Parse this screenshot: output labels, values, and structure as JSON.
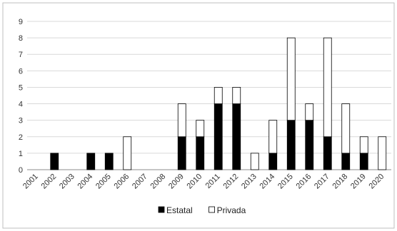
{
  "chart_data": {
    "type": "bar",
    "stacked": true,
    "categories": [
      "2001",
      "2002",
      "2003",
      "2004",
      "2005",
      "2006",
      "2007",
      "2008",
      "2009",
      "2010",
      "2011",
      "2012",
      "2013",
      "2014",
      "2015",
      "2016",
      "2017",
      "2018",
      "2019",
      "2020"
    ],
    "series": [
      {
        "name": "Estatal",
        "color": "#000000",
        "values": [
          0,
          1,
          0,
          1,
          1,
          0,
          0,
          0,
          2,
          2,
          4,
          4,
          0,
          1,
          3,
          3,
          2,
          1,
          1,
          0
        ]
      },
      {
        "name": "Privada",
        "color": "#ffffff",
        "values": [
          0,
          0,
          0,
          0,
          0,
          2,
          0,
          0,
          2,
          1,
          1,
          1,
          1,
          2,
          5,
          1,
          6,
          3,
          1,
          2
        ]
      }
    ],
    "ylim": [
      0,
      9
    ],
    "yticks": [
      0,
      1,
      2,
      3,
      4,
      5,
      6,
      7,
      8,
      9
    ],
    "grid": true,
    "legend_position": "bottom"
  }
}
